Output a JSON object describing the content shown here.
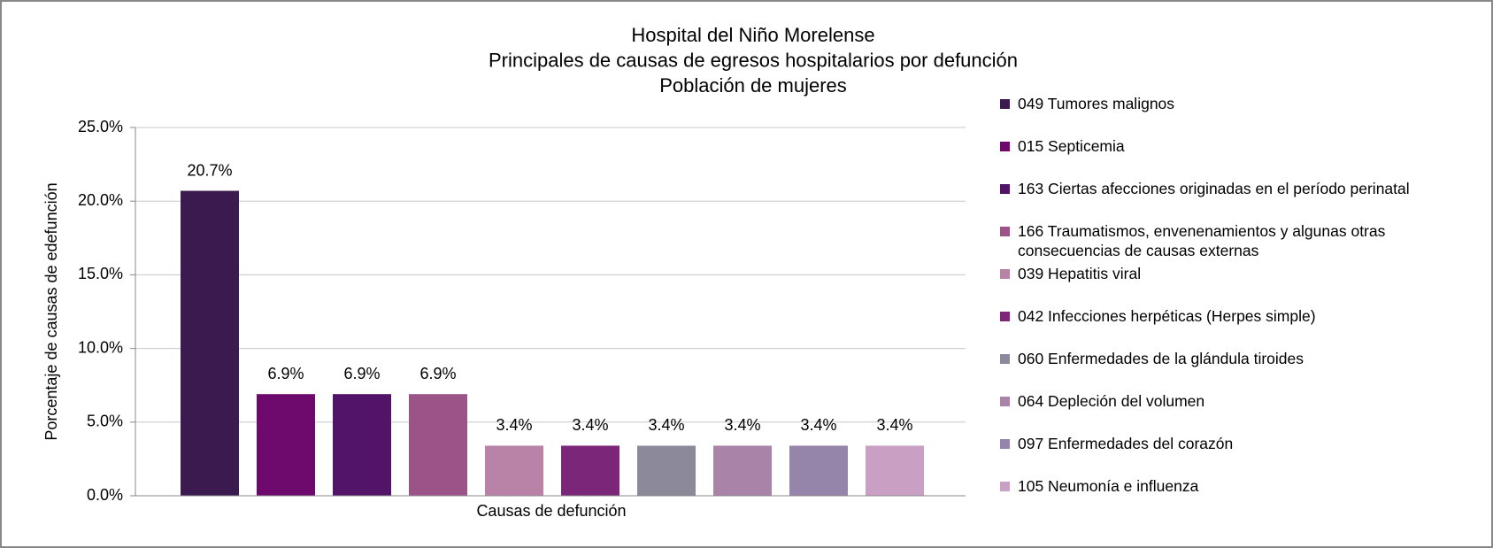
{
  "chart_data": {
    "type": "bar",
    "title": [
      "Hospital del Niño Morelense",
      "Principales de causas de egresos hospitalarios por defunción",
      "Población de mujeres"
    ],
    "y_label": "Porcentaje de causas de edefunción",
    "x_label": "Causas de defunción",
    "categories": [
      "049 Tumores malignos",
      "015 Septicemia",
      "163 Ciertas afecciones originadas en el período perinatal",
      "166 Traumatismos, envenenamientos y algunas otras consecuencias de causas externas",
      "039 Hepatitis viral",
      "042 Infecciones herpéticas (Herpes simple)",
      "060 Enfermedades de la glándula tiroides",
      "064 Depleción del volumen",
      "097 Enfermedades del corazón",
      "105 Neumonía e influenza"
    ],
    "values": [
      20.7,
      6.9,
      6.9,
      6.9,
      3.4,
      3.4,
      3.4,
      3.4,
      3.4,
      3.4
    ],
    "value_labels": [
      "20.7%",
      "6.9%",
      "6.9%",
      "6.9%",
      "3.4%",
      "3.4%",
      "3.4%",
      "3.4%",
      "3.4%",
      "3.4%"
    ],
    "colors": [
      "#3b1a50",
      "#6e0a6e",
      "#521468",
      "#9b5488",
      "#b983a8",
      "#7b2678",
      "#8c8a9a",
      "#a984a8",
      "#9685aa",
      "#c9a0c4"
    ],
    "ylim": [
      0,
      25
    ],
    "yticks": [
      {
        "value": 0,
        "label": "0.0%"
      },
      {
        "value": 5,
        "label": "5.0%"
      },
      {
        "value": 10,
        "label": "10.0%"
      },
      {
        "value": 15,
        "label": "15.0%"
      },
      {
        "value": 20,
        "label": "20.0%"
      },
      {
        "value": 25,
        "label": "25.0%"
      }
    ],
    "grid": true,
    "legend": "right"
  }
}
